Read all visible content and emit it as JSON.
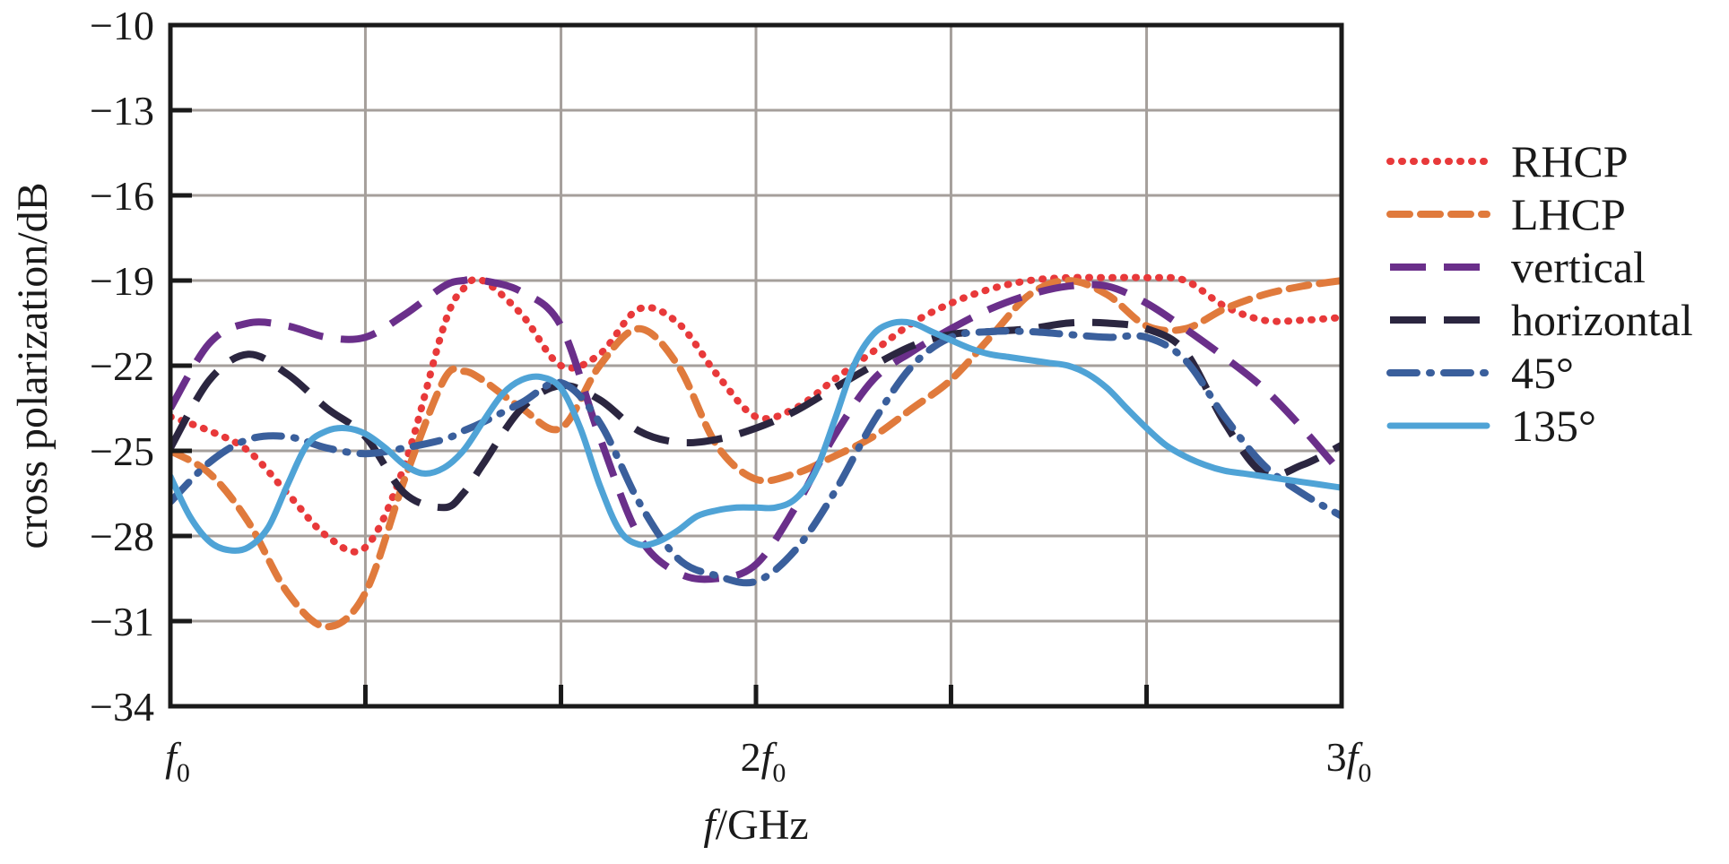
{
  "chart_data": {
    "type": "line",
    "title": "",
    "xlabel": {
      "italic": "f",
      "rest": "/GHz"
    },
    "ylabel": "cross polarization/dB",
    "xlim": [
      1,
      3
    ],
    "ylim": [
      -34,
      -10
    ],
    "yticks": [
      -10,
      -13,
      -16,
      -19,
      -22,
      -25,
      -28,
      -31,
      -34
    ],
    "ytick_labels": [
      "−10",
      "−13",
      "−16",
      "−19",
      "−22",
      "−25",
      "−28",
      "−31",
      "−34"
    ],
    "xgrid": [
      1.333,
      1.667,
      2.0,
      2.333,
      2.667
    ],
    "xticks": [
      {
        "value": 1,
        "coef": "",
        "var": "f",
        "sub": "0"
      },
      {
        "value": 2,
        "coef": "2",
        "var": "f",
        "sub": "0"
      },
      {
        "value": 3,
        "coef": "3",
        "var": "f",
        "sub": "0"
      }
    ],
    "grid": true,
    "legend_position": "right",
    "series": [
      {
        "name": "RHCP",
        "color": "#e8393a",
        "style": "dotted",
        "x": [
          1.0,
          1.067,
          1.133,
          1.2,
          1.267,
          1.333,
          1.4,
          1.467,
          1.5,
          1.533,
          1.6,
          1.667,
          1.733,
          1.8,
          1.867,
          1.933,
          2.0,
          2.067,
          2.133,
          2.2,
          2.267,
          2.333,
          2.4,
          2.467,
          2.533,
          2.6,
          2.667,
          2.733,
          2.8,
          2.867,
          2.933,
          3.0
        ],
        "y": [
          -23.8,
          -24.3,
          -25.0,
          -26.5,
          -28.0,
          -28.4,
          -25.5,
          -20.6,
          -19.3,
          -19.0,
          -20.2,
          -22.0,
          -21.6,
          -20.0,
          -20.5,
          -22.3,
          -23.8,
          -23.5,
          -22.5,
          -21.5,
          -20.5,
          -19.8,
          -19.3,
          -19.0,
          -18.9,
          -18.9,
          -18.9,
          -19.0,
          -19.9,
          -20.4,
          -20.4,
          -20.3
        ]
      },
      {
        "name": "LHCP",
        "color": "#e07a3c",
        "style": "dashed",
        "x": [
          1.0,
          1.067,
          1.133,
          1.2,
          1.267,
          1.333,
          1.4,
          1.467,
          1.5,
          1.533,
          1.6,
          1.667,
          1.733,
          1.8,
          1.867,
          1.933,
          2.0,
          2.067,
          2.133,
          2.2,
          2.267,
          2.333,
          2.4,
          2.467,
          2.533,
          2.6,
          2.667,
          2.733,
          2.8,
          2.867,
          2.933,
          3.0
        ],
        "y": [
          -25.0,
          -25.8,
          -27.5,
          -30.0,
          -31.2,
          -30.0,
          -26.0,
          -22.5,
          -22.2,
          -22.5,
          -23.5,
          -24.2,
          -22.0,
          -20.7,
          -22.0,
          -24.8,
          -26.0,
          -25.8,
          -25.2,
          -24.5,
          -23.5,
          -22.5,
          -21.0,
          -19.5,
          -19.0,
          -19.5,
          -20.6,
          -20.7,
          -20.0,
          -19.5,
          -19.2,
          -19.0
        ]
      },
      {
        "name": "vertical",
        "color": "#6a2f8a",
        "style": "longdash",
        "x": [
          1.0,
          1.067,
          1.133,
          1.2,
          1.267,
          1.333,
          1.4,
          1.467,
          1.5,
          1.533,
          1.6,
          1.667,
          1.733,
          1.8,
          1.867,
          1.933,
          2.0,
          2.067,
          2.133,
          2.2,
          2.267,
          2.333,
          2.4,
          2.467,
          2.533,
          2.6,
          2.667,
          2.733,
          2.8,
          2.867,
          2.933,
          3.0
        ],
        "y": [
          -23.5,
          -21.2,
          -20.5,
          -20.6,
          -21.0,
          -21.0,
          -20.2,
          -19.2,
          -19.0,
          -19.0,
          -19.4,
          -20.6,
          -24.5,
          -28.0,
          -29.3,
          -29.5,
          -29.0,
          -27.0,
          -24.5,
          -22.5,
          -21.5,
          -20.7,
          -20.0,
          -19.5,
          -19.2,
          -19.2,
          -19.8,
          -20.7,
          -21.7,
          -22.8,
          -24.2,
          -25.8
        ]
      },
      {
        "name": "horizontal",
        "color": "#2b2640",
        "style": "longdash",
        "x": [
          1.0,
          1.067,
          1.133,
          1.2,
          1.267,
          1.333,
          1.4,
          1.467,
          1.5,
          1.533,
          1.6,
          1.667,
          1.733,
          1.8,
          1.867,
          1.933,
          2.0,
          2.067,
          2.133,
          2.2,
          2.267,
          2.333,
          2.4,
          2.467,
          2.533,
          2.6,
          2.667,
          2.733,
          2.8,
          2.867,
          2.933,
          3.0
        ],
        "y": [
          -24.9,
          -22.5,
          -21.6,
          -22.3,
          -23.5,
          -24.5,
          -26.5,
          -27.0,
          -26.5,
          -25.5,
          -23.5,
          -22.7,
          -23.2,
          -24.3,
          -24.7,
          -24.6,
          -24.2,
          -23.6,
          -22.8,
          -22.0,
          -21.3,
          -20.9,
          -20.8,
          -20.7,
          -20.5,
          -20.5,
          -20.7,
          -21.5,
          -24.0,
          -25.8,
          -25.5,
          -24.8
        ]
      },
      {
        "name": "45°",
        "color": "#3a5f9c",
        "style": "dashdot",
        "x": [
          1.0,
          1.067,
          1.133,
          1.2,
          1.267,
          1.333,
          1.4,
          1.467,
          1.5,
          1.533,
          1.6,
          1.667,
          1.733,
          1.8,
          1.867,
          1.933,
          2.0,
          2.067,
          2.133,
          2.2,
          2.267,
          2.333,
          2.4,
          2.467,
          2.533,
          2.6,
          2.667,
          2.733,
          2.8,
          2.867,
          2.933,
          3.0
        ],
        "y": [
          -26.8,
          -25.4,
          -24.6,
          -24.5,
          -24.9,
          -25.1,
          -24.9,
          -24.6,
          -24.3,
          -24.0,
          -23.3,
          -22.6,
          -24.0,
          -26.8,
          -28.8,
          -29.4,
          -29.6,
          -28.5,
          -26.5,
          -24.0,
          -22.0,
          -21.0,
          -20.8,
          -20.8,
          -20.9,
          -21.0,
          -21.0,
          -21.8,
          -23.8,
          -25.5,
          -26.5,
          -27.3
        ]
      },
      {
        "name": "135°",
        "color": "#4fa3d6",
        "style": "solid",
        "x": [
          1.0,
          1.033,
          1.067,
          1.1,
          1.133,
          1.167,
          1.2,
          1.233,
          1.267,
          1.3,
          1.333,
          1.367,
          1.4,
          1.433,
          1.467,
          1.5,
          1.533,
          1.567,
          1.6,
          1.633,
          1.667,
          1.7,
          1.733,
          1.767,
          1.8,
          1.833,
          1.867,
          1.9,
          1.933,
          1.967,
          2.0,
          2.033,
          2.067,
          2.1,
          2.133,
          2.167,
          2.2,
          2.233,
          2.267,
          2.3,
          2.333,
          2.367,
          2.4,
          2.433,
          2.467,
          2.5,
          2.533,
          2.567,
          2.6,
          2.633,
          2.667,
          2.7,
          2.733,
          2.767,
          2.8,
          2.833,
          2.867,
          2.9,
          2.933,
          2.967,
          3.0
        ],
        "y": [
          -25.9,
          -27.3,
          -28.2,
          -28.5,
          -28.4,
          -27.7,
          -26.2,
          -24.8,
          -24.3,
          -24.2,
          -24.4,
          -24.9,
          -25.5,
          -25.8,
          -25.6,
          -25.0,
          -24.0,
          -23.0,
          -22.5,
          -22.4,
          -22.8,
          -24.2,
          -26.2,
          -27.8,
          -28.3,
          -28.2,
          -27.8,
          -27.3,
          -27.1,
          -27.0,
          -27.0,
          -27.0,
          -26.7,
          -25.8,
          -24.0,
          -22.0,
          -20.9,
          -20.5,
          -20.5,
          -20.8,
          -21.1,
          -21.4,
          -21.6,
          -21.7,
          -21.8,
          -21.9,
          -22.0,
          -22.3,
          -22.8,
          -23.5,
          -24.2,
          -24.8,
          -25.2,
          -25.5,
          -25.7,
          -25.8,
          -25.9,
          -26.0,
          -26.1,
          -26.2,
          -26.3
        ]
      }
    ]
  }
}
